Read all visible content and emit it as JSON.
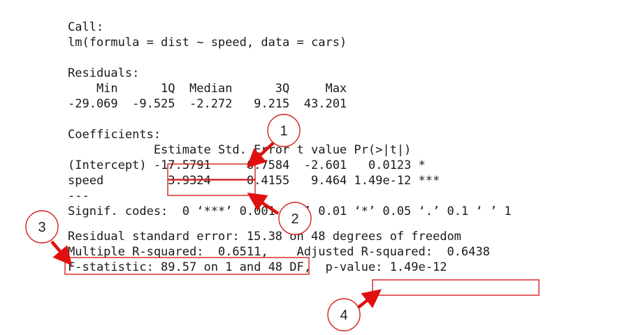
{
  "console": {
    "call_header": "Call:",
    "call_formula": "lm(formula = dist ~ speed, data = cars)",
    "residuals_header": "Residuals:",
    "residuals_labels": "    Min      1Q  Median      3Q     Max ",
    "residuals_values": "-29.069  -9.525  -2.272   9.215  43.201 ",
    "coef_header": "Coefficients:",
    "coef_colnames": "            Estimate Std. Error t value Pr(>|t|)    ",
    "coef_row_intercept": "(Intercept) -17.5791     6.7584  -2.601   0.0123 *  ",
    "coef_row_speed": "speed         3.9324     0.4155   9.464 1.49e-12 ***",
    "separator": "---",
    "signif_codes": "Signif. codes:  0 ‘***’ 0.001 ‘**’ 0.01 ‘*’ 0.05 ‘.’ 0.1 ‘ ’ 1",
    "rse_line": "Residual standard error: 15.38 on 48 degrees of freedom",
    "r2_line": "Multiple R-squared:  0.6511,\tAdjusted R-squared:  0.6438 ",
    "f_line": "F-statistic: 89.57 on 1 and 48 DF,  p-value: 1.49e-12"
  },
  "callouts": {
    "c1": "1",
    "c2": "2",
    "c3": "3",
    "c4": "4"
  },
  "colors": {
    "annotation_red": "#e01010",
    "text": "#1a1a1a"
  }
}
